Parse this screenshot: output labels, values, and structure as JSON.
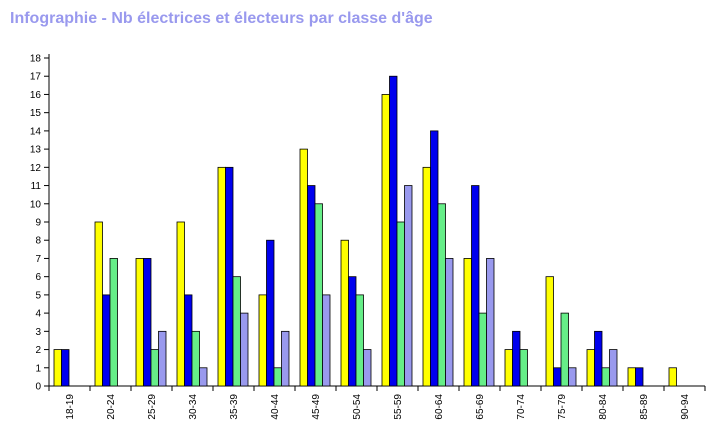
{
  "chart_data": {
    "type": "bar",
    "title": "Infographie - Nb électrices et électeurs par classe d'âge",
    "categories": [
      "18-19",
      "20-24",
      "25-29",
      "30-34",
      "35-39",
      "40-44",
      "45-49",
      "50-54",
      "55-59",
      "60-64",
      "65-69",
      "70-74",
      "75-79",
      "80-84",
      "85-89",
      "90-94"
    ],
    "ylim": [
      0,
      18
    ],
    "yticks": [
      0,
      1,
      2,
      3,
      4,
      5,
      6,
      7,
      8,
      9,
      10,
      11,
      12,
      13,
      14,
      15,
      16,
      17,
      18
    ],
    "legend": "none",
    "grid": false,
    "series": [
      {
        "color": "#ffff00",
        "values": [
          2,
          9,
          7,
          9,
          12,
          5,
          13,
          8,
          16,
          12,
          7,
          2,
          6,
          2,
          1,
          1
        ]
      },
      {
        "color": "#0000ee",
        "values": [
          2,
          5,
          7,
          5,
          12,
          8,
          11,
          6,
          17,
          14,
          11,
          3,
          1,
          3,
          1,
          0
        ]
      },
      {
        "color": "#66ee88",
        "values": [
          0,
          7,
          2,
          3,
          6,
          1,
          10,
          5,
          9,
          10,
          4,
          2,
          4,
          1,
          0,
          0
        ]
      },
      {
        "color": "#9999ee",
        "values": [
          0,
          0,
          3,
          1,
          4,
          3,
          5,
          2,
          11,
          7,
          7,
          0,
          1,
          2,
          0,
          0
        ]
      }
    ]
  }
}
